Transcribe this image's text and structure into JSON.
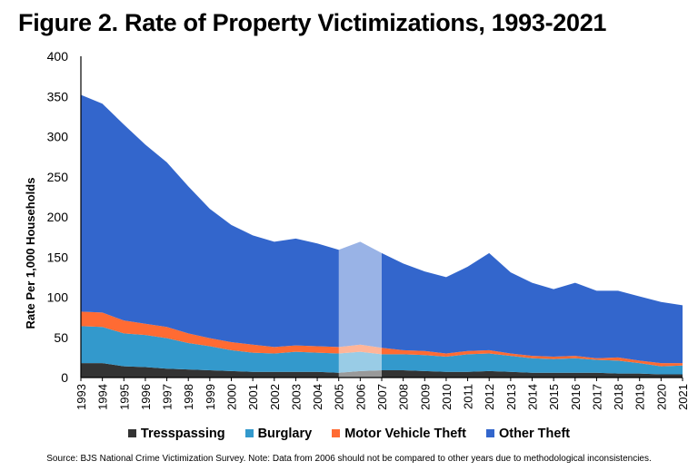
{
  "title": "Figure 2. Rate of Property Victimizations, 1993-2021",
  "source": "Source: BJS National Crime Victimization Survey. Note: Data from 2006 should not be compared to other years due to methodological inconsistencies.",
  "chart_data": {
    "type": "area",
    "stacked": true,
    "title": "Figure 2. Rate of Property Victimizations, 1993-2021",
    "xlabel": "",
    "ylabel": "Rate Per 1,000 Households",
    "ylim": [
      0,
      400
    ],
    "yticks": [
      "0",
      "50",
      "100",
      "150",
      "200",
      "250",
      "300",
      "350",
      "400"
    ],
    "grid": false,
    "legend": "bottom",
    "highlight_years": [
      2005,
      2007
    ],
    "x": [
      "1993",
      "1994",
      "1995",
      "1996",
      "1997",
      "1998",
      "1999",
      "2000",
      "2001",
      "2002",
      "2003",
      "2004",
      "2005",
      "2006",
      "2007",
      "2008",
      "2009",
      "2010",
      "2011",
      "2012",
      "2013",
      "2014",
      "2015",
      "2016",
      "2017",
      "2018",
      "2019",
      "2020",
      "2021"
    ],
    "series": [
      {
        "name": "Tresspassing",
        "color": "#333333",
        "values": [
          18,
          18,
          14,
          13,
          11,
          10,
          9,
          8,
          7,
          7,
          7,
          7,
          6,
          8,
          9,
          9,
          8,
          7,
          7,
          8,
          7,
          6,
          6,
          6,
          6,
          5,
          5,
          4,
          4
        ]
      },
      {
        "name": "Burglary",
        "color": "#3399CC",
        "values": [
          46,
          45,
          41,
          40,
          38,
          33,
          30,
          26,
          24,
          23,
          25,
          24,
          24,
          24,
          20,
          20,
          20,
          19,
          22,
          22,
          20,
          18,
          17,
          18,
          16,
          16,
          13,
          10,
          11
        ]
      },
      {
        "name": "Motor Vehicle Theft",
        "color": "#FF6B33",
        "values": [
          18,
          18,
          16,
          14,
          14,
          12,
          10,
          10,
          10,
          8,
          8,
          8,
          8,
          9,
          8,
          5,
          5,
          4,
          4,
          4,
          3,
          3,
          3,
          3,
          2,
          4,
          3,
          4,
          3
        ]
      },
      {
        "name": "Other Theft",
        "color": "#3366CC",
        "values": [
          270,
          260,
          244,
          223,
          205,
          183,
          161,
          146,
          136,
          131,
          133,
          128,
          121,
          128,
          118,
          108,
          99,
          95,
          105,
          121,
          101,
          91,
          84,
          91,
          84,
          83,
          80,
          76,
          72
        ]
      }
    ]
  }
}
